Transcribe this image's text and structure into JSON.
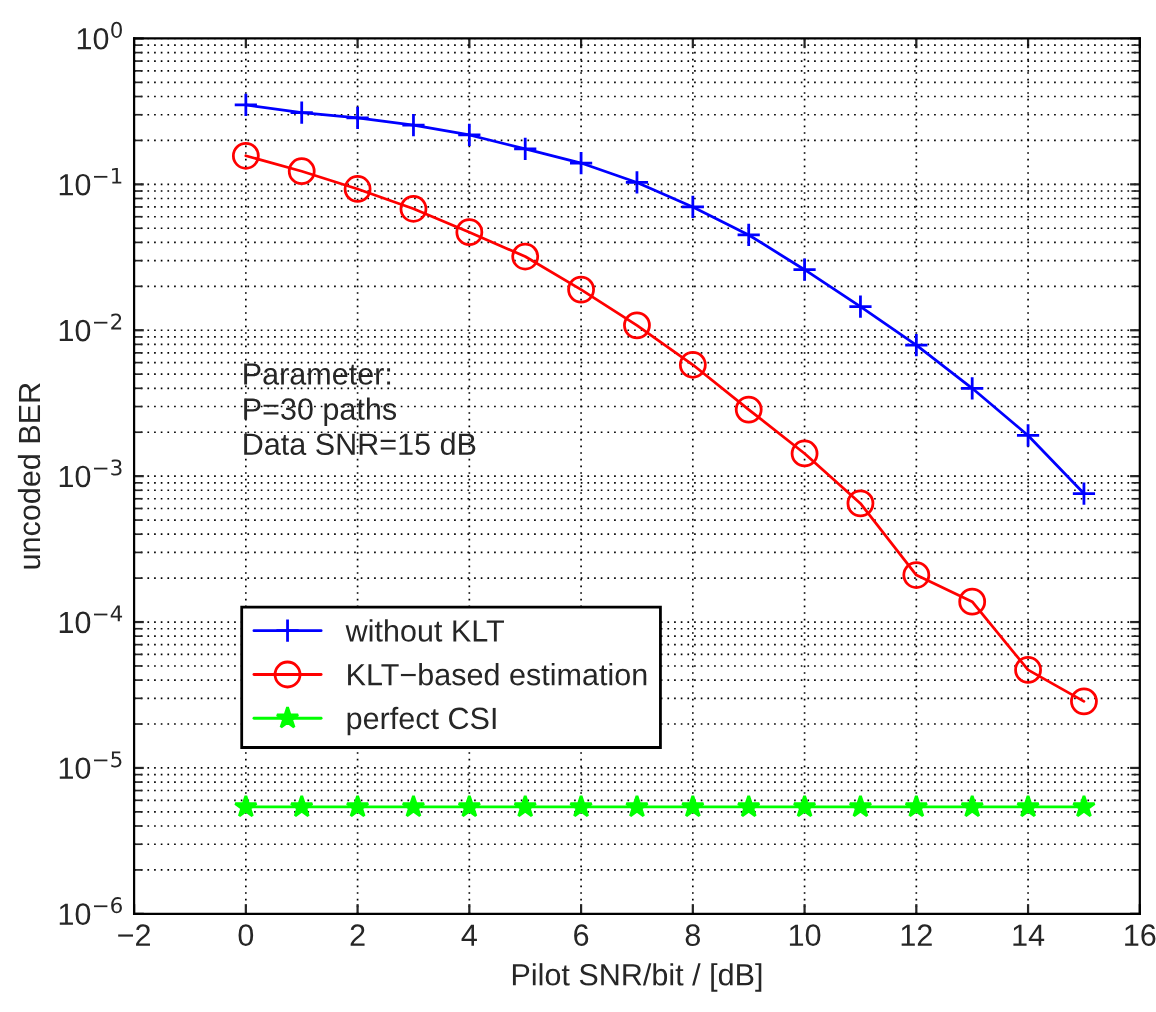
{
  "chart_data": {
    "type": "line",
    "xlabel": "Pilot SNR/bit / [dB]",
    "ylabel": "uncoded BER",
    "x": [
      0,
      1,
      2,
      3,
      4,
      5,
      6,
      7,
      8,
      9,
      10,
      11,
      12,
      13,
      14,
      15
    ],
    "series": [
      {
        "name": "without KLT",
        "color": "#0000ff",
        "marker": "cross",
        "values": [
          0.35,
          0.31,
          0.286,
          0.255,
          0.218,
          0.175,
          0.14,
          0.103,
          0.07,
          0.045,
          0.026,
          0.0145,
          0.0079,
          0.004,
          0.0019,
          0.00076
        ]
      },
      {
        "name": "KLT−based estimation",
        "color": "#ff0000",
        "marker": "circle",
        "values": [
          0.157,
          0.123,
          0.093,
          0.068,
          0.047,
          0.032,
          0.019,
          0.0108,
          0.0058,
          0.00286,
          0.00143,
          0.00065,
          0.00021,
          0.000138,
          4.7e-05,
          2.86e-05
        ]
      },
      {
        "name": "perfect CSI",
        "color": "#00ff00",
        "marker": "star",
        "values": [
          5.4e-06,
          5.4e-06,
          5.4e-06,
          5.4e-06,
          5.4e-06,
          5.4e-06,
          5.4e-06,
          5.4e-06,
          5.4e-06,
          5.4e-06,
          5.4e-06,
          5.4e-06,
          5.4e-06,
          5.4e-06,
          5.4e-06,
          5.4e-06
        ]
      }
    ],
    "log": "y",
    "xlim": [
      -2,
      16
    ],
    "xticks": [
      -2,
      0,
      2,
      4,
      6,
      8,
      10,
      12,
      14,
      16
    ],
    "ylim": [
      1e-06,
      1
    ],
    "yticks": [
      {
        "value": 1e-06,
        "label": "10$^{−6}$"
      },
      {
        "value": 1e-05,
        "label": "10$^{−5}$"
      },
      {
        "value": 0.0001,
        "label": "10$^{−4}$"
      },
      {
        "value": 0.001,
        "label": "10$^{−3}$"
      },
      {
        "value": 0.01,
        "label": "10$^{−2}$"
      },
      {
        "value": 0.1,
        "label": "10$^{−1}$"
      },
      {
        "value": 1,
        "label": "10$^{0}$"
      }
    ],
    "grid": true,
    "legend": "bottom left",
    "line_style": "solid",
    "annotations": [
      "Parameter:\nP=30 paths\nData SNR=15 dB"
    ]
  }
}
